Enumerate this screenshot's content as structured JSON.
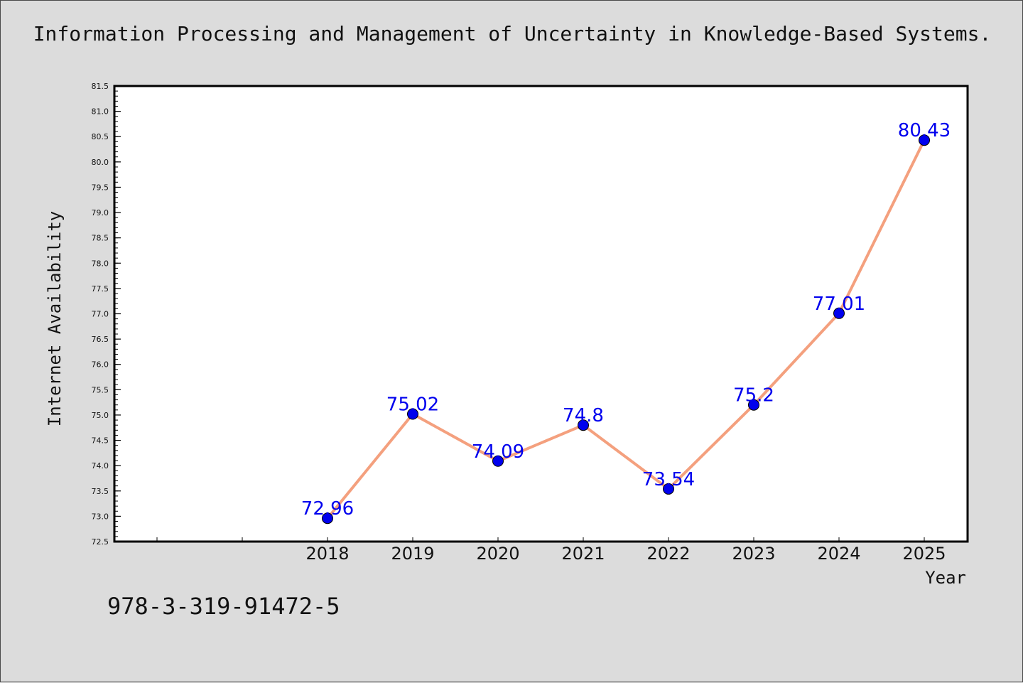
{
  "page": {
    "title": "Information Processing and Management of Uncertainty in Knowledge-Based Systems.",
    "footnote": "978-3-319-91472-5"
  },
  "colors": {
    "background": "#dcdcdc",
    "plot_background": "#ffffff",
    "line": "#f4a07e",
    "marker": "#0000ee",
    "data_label": "#0000ee"
  },
  "chart_data": {
    "type": "line",
    "title": "Information Processing and Management of Uncertainty in Knowledge-Based Systems.",
    "xlabel": "Year",
    "ylabel": "Internet Availability",
    "x": [
      "2018",
      "2019",
      "2020",
      "2021",
      "2022",
      "2023",
      "2024",
      "2025"
    ],
    "x_slots": [
      "",
      "",
      "2018",
      "2019",
      "2020",
      "2021",
      "2022",
      "2023",
      "2024",
      "2025"
    ],
    "values": [
      72.96,
      75.02,
      74.09,
      74.8,
      73.54,
      75.2,
      77.01,
      80.43
    ],
    "data_labels": [
      "72.96",
      "75.02",
      "74.09",
      "74.8",
      "73.54",
      "75.2",
      "77.01",
      "80.43"
    ],
    "ylim": [
      72.5,
      81.5
    ],
    "yticks": [
      "72.5",
      "73.0",
      "73.5",
      "74.0",
      "74.5",
      "75.0",
      "75.5",
      "76.0",
      "76.5",
      "77.0",
      "77.5",
      "78.0",
      "78.5",
      "79.0",
      "79.5",
      "80.0",
      "80.5",
      "81.0",
      "81.5"
    ],
    "ytick_values": [
      72.5,
      73.0,
      73.5,
      74.0,
      74.5,
      75.0,
      75.5,
      76.0,
      76.5,
      77.0,
      77.5,
      78.0,
      78.5,
      79.0,
      79.5,
      80.0,
      80.5,
      81.0,
      81.5
    ],
    "grid": false,
    "legend": "none"
  }
}
